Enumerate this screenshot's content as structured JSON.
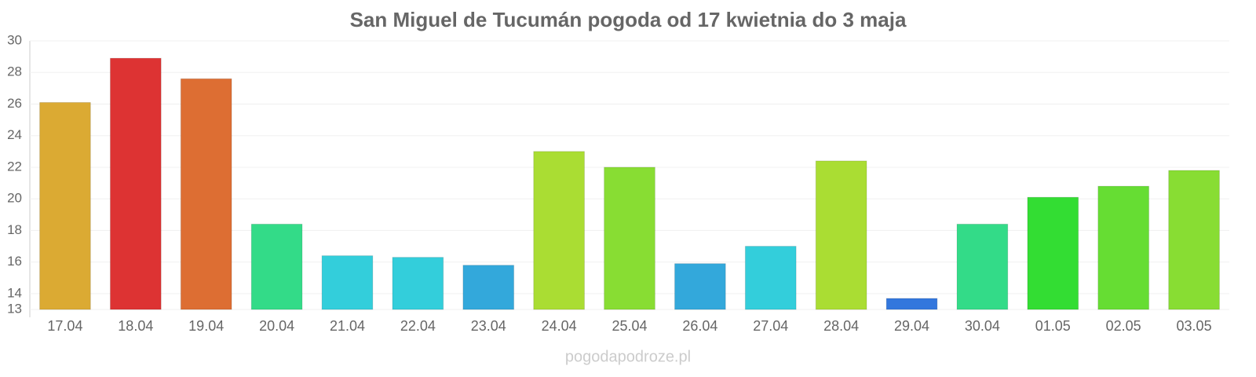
{
  "chart_data": {
    "type": "bar",
    "title": "San Miguel de Tucumán pogoda od 17 kwietnia do 3 maja",
    "categories": [
      "17.04",
      "18.04",
      "19.04",
      "20.04",
      "21.04",
      "22.04",
      "23.04",
      "24.04",
      "25.04",
      "26.04",
      "27.04",
      "28.04",
      "29.04",
      "30.04",
      "01.05",
      "02.05",
      "03.05"
    ],
    "values": [
      26.1,
      28.9,
      27.6,
      18.4,
      16.4,
      16.3,
      15.8,
      23.0,
      22.0,
      15.9,
      17.0,
      22.4,
      13.7,
      18.4,
      20.1,
      20.8,
      21.8
    ],
    "colors": [
      "#dbaa33",
      "#dd3333",
      "#dd6e33",
      "#33db88",
      "#33cedb",
      "#33cedb",
      "#33a8db",
      "#aadd33",
      "#88dd33",
      "#33a8db",
      "#33cedb",
      "#aadd33",
      "#3377dd",
      "#33db88",
      "#33dd33",
      "#66dd33",
      "#88dd33"
    ],
    "ylim": [
      13,
      30
    ],
    "yticks": [
      13,
      14,
      16,
      18,
      20,
      22,
      24,
      26,
      28,
      30
    ],
    "grid": true,
    "watermark": "pogodapodroze.pl"
  }
}
